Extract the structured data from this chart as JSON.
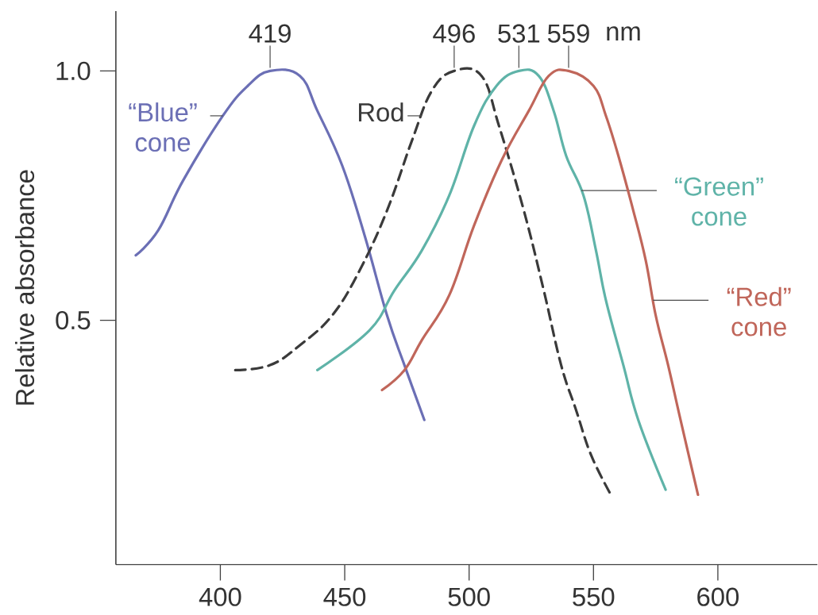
{
  "chart_data": {
    "type": "line",
    "ylabel": "Relative absorbance",
    "xlim": [
      358,
      640
    ],
    "ylim": [
      0.01,
      1.12
    ],
    "xticks": [
      400,
      450,
      500,
      550,
      600
    ],
    "yticks": [
      0.5,
      {
        "value": 1.0,
        "label": "1.0"
      }
    ],
    "series": [
      {
        "name": "“Blue” cone",
        "color": "#6b6fb5",
        "line_style": "solid",
        "x": [
          366,
          375,
          385,
          401,
          411,
          420,
          432,
          439,
          449,
          458,
          467,
          474,
          482
        ],
        "values": [
          0.63,
          0.68,
          0.78,
          0.91,
          0.97,
          1.0,
          0.99,
          0.92,
          0.81,
          0.67,
          0.51,
          0.41,
          0.3
        ]
      },
      {
        "name": "Rod",
        "color": "#3a3a3a",
        "line_style": "dashed",
        "x": [
          406,
          420,
          432,
          445,
          456,
          467,
          477,
          485,
          494,
          505,
          512,
          522,
          530,
          537,
          543,
          549,
          557
        ],
        "values": [
          0.4,
          0.41,
          0.45,
          0.51,
          0.6,
          0.72,
          0.86,
          0.96,
          1.0,
          0.99,
          0.89,
          0.72,
          0.56,
          0.41,
          0.32,
          0.23,
          0.15
        ]
      },
      {
        "name": "“Green” cone",
        "color": "#5fb3a8",
        "line_style": "solid",
        "x": [
          439,
          460,
          470,
          481,
          492,
          502,
          511,
          520,
          528,
          534,
          539,
          546,
          551,
          555,
          562,
          568,
          579
        ],
        "values": [
          0.4,
          0.48,
          0.56,
          0.64,
          0.75,
          0.89,
          0.97,
          1.0,
          0.99,
          0.92,
          0.83,
          0.75,
          0.64,
          0.54,
          0.41,
          0.3,
          0.16
        ]
      },
      {
        "name": "“Red” cone",
        "color": "#c0665a",
        "line_style": "solid",
        "x": [
          465,
          474,
          481,
          492,
          502,
          513,
          524,
          532,
          540,
          550,
          555,
          560,
          566,
          571,
          575,
          580,
          585,
          592
        ],
        "values": [
          0.36,
          0.4,
          0.46,
          0.55,
          0.69,
          0.82,
          0.92,
          0.99,
          1.0,
          0.97,
          0.91,
          0.83,
          0.72,
          0.62,
          0.51,
          0.41,
          0.3,
          0.15
        ]
      }
    ],
    "annotations": [
      {
        "text": "419",
        "x": 420,
        "y": 1.0
      },
      {
        "text": "496",
        "x": 494,
        "y": 1.0
      },
      {
        "text": "531",
        "x": 520,
        "y": 1.0
      },
      {
        "text": "559",
        "x": 540,
        "y": 1.0
      },
      "nm"
    ]
  }
}
